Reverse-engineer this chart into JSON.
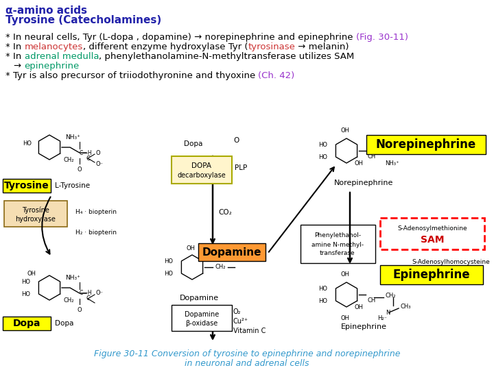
{
  "title_line1": "α-amino acids",
  "title_line2": "Tyrosine (Catecholamines)",
  "title_color": "#2222aa",
  "bullet1_black": "* In neural cells, Tyr (L-dopa , dopamine) → norepinephrine and epinephrine ",
  "bullet1_purple": "(Fig. 30-11)",
  "bullet2_b1": "* In ",
  "bullet2_red": "melanocytes",
  "bullet2_b2": ", different enzyme hydroxylase Tyr (",
  "bullet2_red2": "tyrosinase",
  "bullet2_b3": " → melanin)",
  "bullet3_b1": "* In ",
  "bullet3_green": "adrenal medulla",
  "bullet3_b2": ", phenylethanolamine-N-methyltransferase utilizes SAM",
  "bullet3b_arr": "→ ",
  "bullet3b_green": "epinephrine",
  "bullet4_b1": "* Tyr is also precursor of triiodothyronine and thyoxine ",
  "bullet4_purple": "(Ch. 42)",
  "red_color": "#cc3333",
  "green_color": "#009966",
  "purple_color": "#9933cc",
  "black_color": "#000000",
  "title_color_val": "#2222aa",
  "fig_cap1": "Figure 30-11 Conversion of tyrosine to epinephrine and norepinephrine",
  "fig_cap2": "in neuronal and adrenal cells",
  "fig_cap_color": "#3399cc",
  "bg": "#ffffff"
}
